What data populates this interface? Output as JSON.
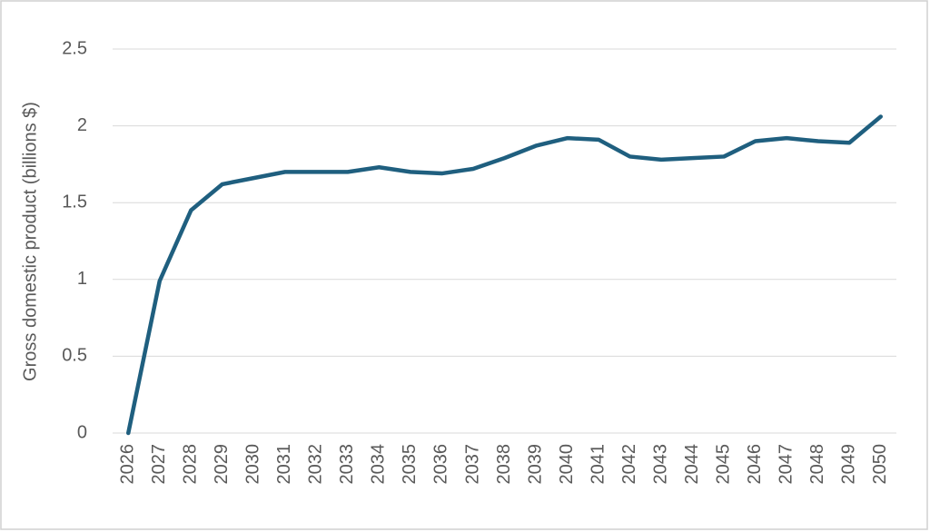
{
  "chart_data": {
    "type": "line",
    "y_label": "Gross domestic product (billions $)",
    "categories": [
      "2026",
      "2027",
      "2028",
      "2029",
      "2030",
      "2031",
      "2032",
      "2033",
      "2034",
      "2035",
      "2036",
      "2037",
      "2038",
      "2039",
      "2040",
      "2041",
      "2042",
      "2043",
      "2044",
      "2045",
      "2046",
      "2047",
      "2048",
      "2049",
      "2050"
    ],
    "series": [
      {
        "color": "#1f5f7f",
        "values": [
          0,
          0.99,
          1.45,
          1.62,
          1.66,
          1.7,
          1.7,
          1.7,
          1.73,
          1.7,
          1.69,
          1.72,
          1.79,
          1.87,
          1.92,
          1.91,
          1.8,
          1.78,
          1.79,
          1.8,
          1.9,
          1.92,
          1.9,
          1.89,
          2.06
        ]
      }
    ],
    "ylim": [
      0,
      2.5
    ],
    "yticks": [
      0,
      0.5,
      1,
      1.5,
      2,
      2.5
    ],
    "grid": true
  }
}
